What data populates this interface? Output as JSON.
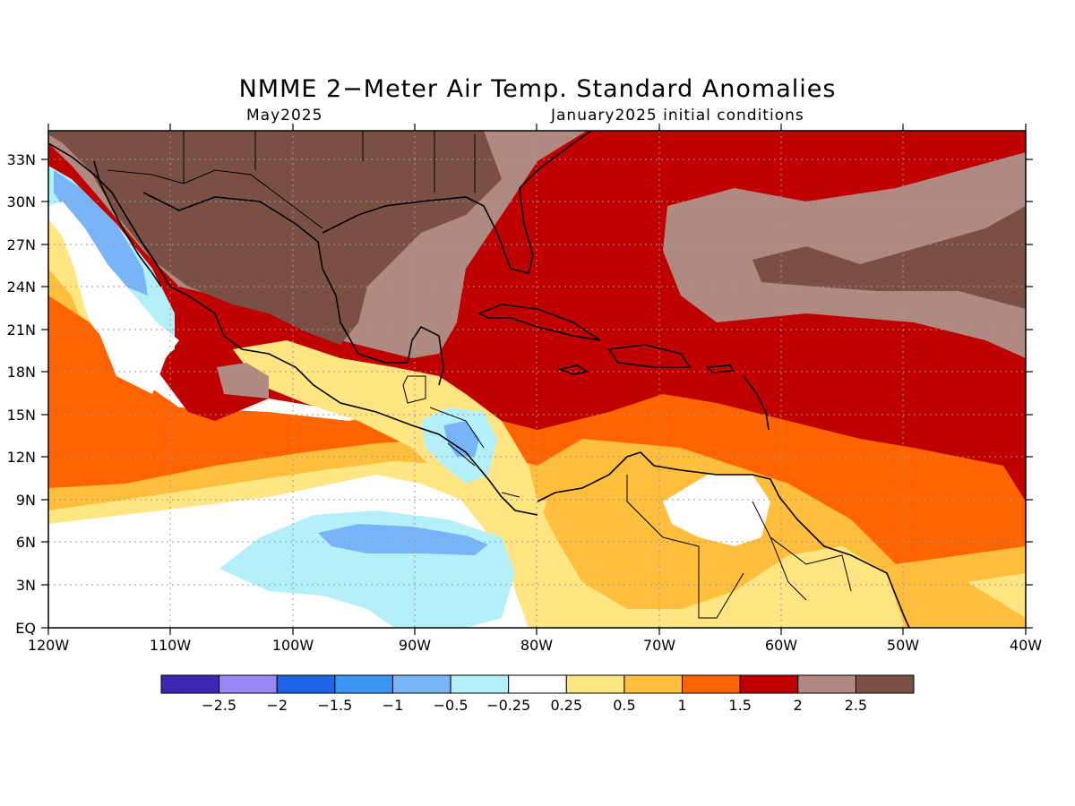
{
  "title": "NMME 2−Meter Air Temp. Standard Anomalies",
  "valid_month": "May2025",
  "init_conditions": "January2025 initial conditions",
  "lat_labels": [
    "33N",
    "30N",
    "27N",
    "24N",
    "21N",
    "18N",
    "15N",
    "12N",
    "9N",
    "6N",
    "3N",
    "EQ"
  ],
  "lon_labels": [
    "120W",
    "110W",
    "100W",
    "90W",
    "80W",
    "70W",
    "60W",
    "50W",
    "40W"
  ],
  "colorbar": {
    "colors": [
      "#3c28b4",
      "#9a86f6",
      "#1e64e6",
      "#3c96f0",
      "#78b4f8",
      "#b4f0fa",
      "#ffffff",
      "#ffe682",
      "#ffbe3c",
      "#ff6400",
      "#c00000",
      "#b08a80",
      "#7a5044"
    ],
    "labels": [
      "−2.5",
      "−2",
      "−1.5",
      "−1",
      "−0.5",
      "−0.25",
      "0.25",
      "0.5",
      "1",
      "1.5",
      "2",
      "2.5"
    ]
  },
  "colors": {
    "strong_warm": "#7a5044",
    "warm_2": "#b08a80",
    "warm_15": "#c00000",
    "warm_1": "#ff6400",
    "warm_05": "#ffbe3c",
    "warm_025": "#ffe682",
    "neutral": "#ffffff",
    "cool_025": "#b4f0fa",
    "cool_05": "#78b4f8"
  }
}
